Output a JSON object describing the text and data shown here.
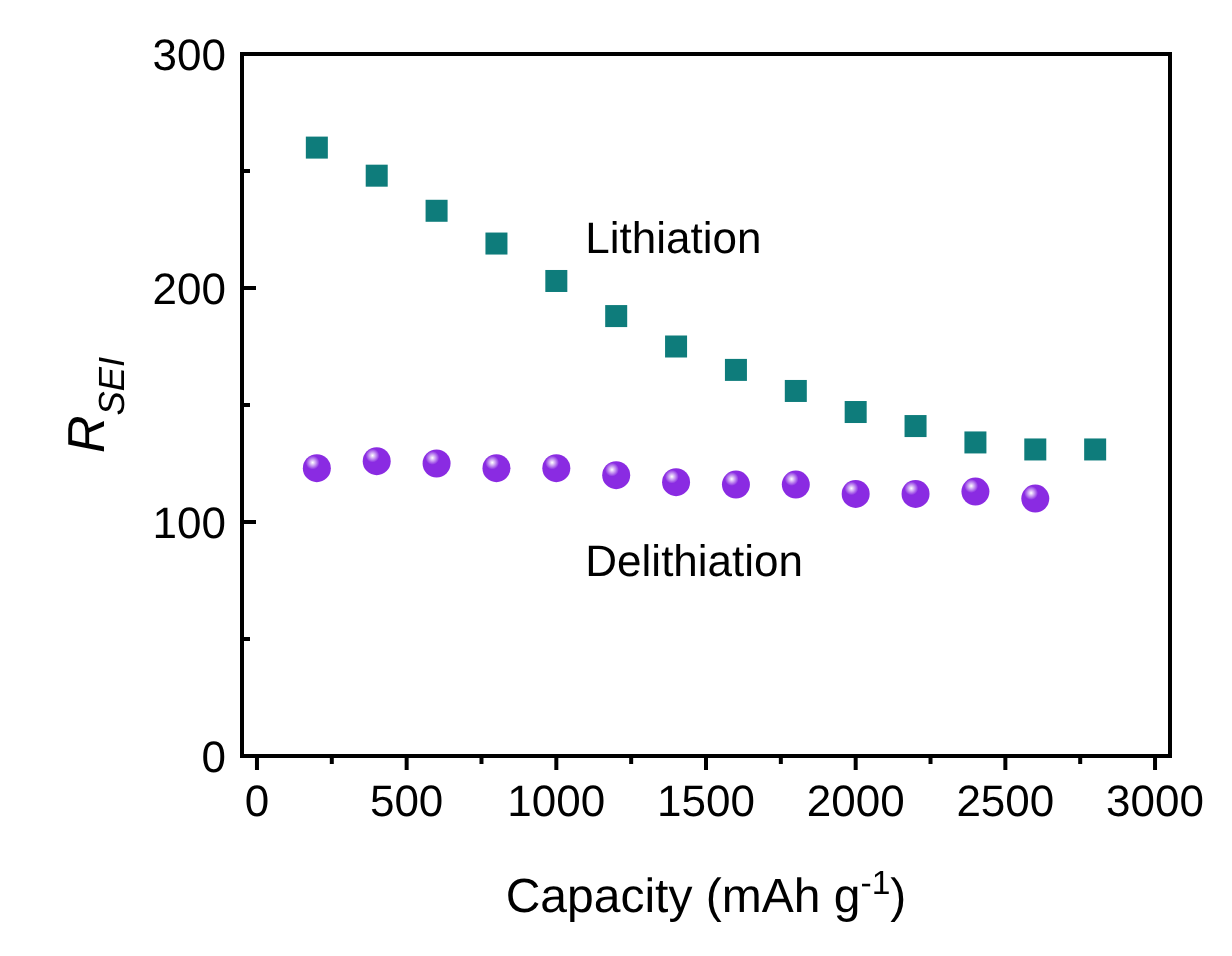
{
  "chart_data": {
    "type": "scatter",
    "xlabel": "Capacity (mAh g$^{-1}$)",
    "ylabel": "R$_{SEI}$",
    "x": [
      200,
      400,
      600,
      800,
      1000,
      1200,
      1400,
      1600,
      1800,
      2000,
      2200,
      2400,
      2600,
      2800
    ],
    "series": [
      {
        "name": "Lithiation",
        "color": "#0e7c7b",
        "marker": "square",
        "values": [
          260,
          248,
          233,
          219,
          203,
          188,
          175,
          165,
          156,
          147,
          141,
          134,
          131,
          131
        ]
      },
      {
        "name": "Delithiation",
        "color": "#8a2be2",
        "marker": "circle",
        "values": [
          123,
          126,
          125,
          123,
          123,
          120,
          117,
          116,
          116,
          112,
          112,
          113,
          110,
          null
        ]
      }
    ],
    "xlim": [
      -50,
      3050
    ],
    "ylim": [
      0,
      300
    ],
    "xticks": [
      0,
      {
        "value": 250,
        "label": null
      },
      500,
      {
        "value": 750,
        "label": null
      },
      1000,
      {
        "value": 1250,
        "label": null
      },
      1500,
      {
        "value": 1750,
        "label": null
      },
      2000,
      {
        "value": 2250,
        "label": null
      },
      2500,
      {
        "value": 2750,
        "label": null
      },
      3000
    ],
    "yticks": [
      0,
      {
        "value": 50,
        "label": null
      },
      100,
      {
        "value": 150,
        "label": null
      },
      200,
      {
        "value": 250,
        "label": null
      },
      300
    ],
    "grid": false
  }
}
